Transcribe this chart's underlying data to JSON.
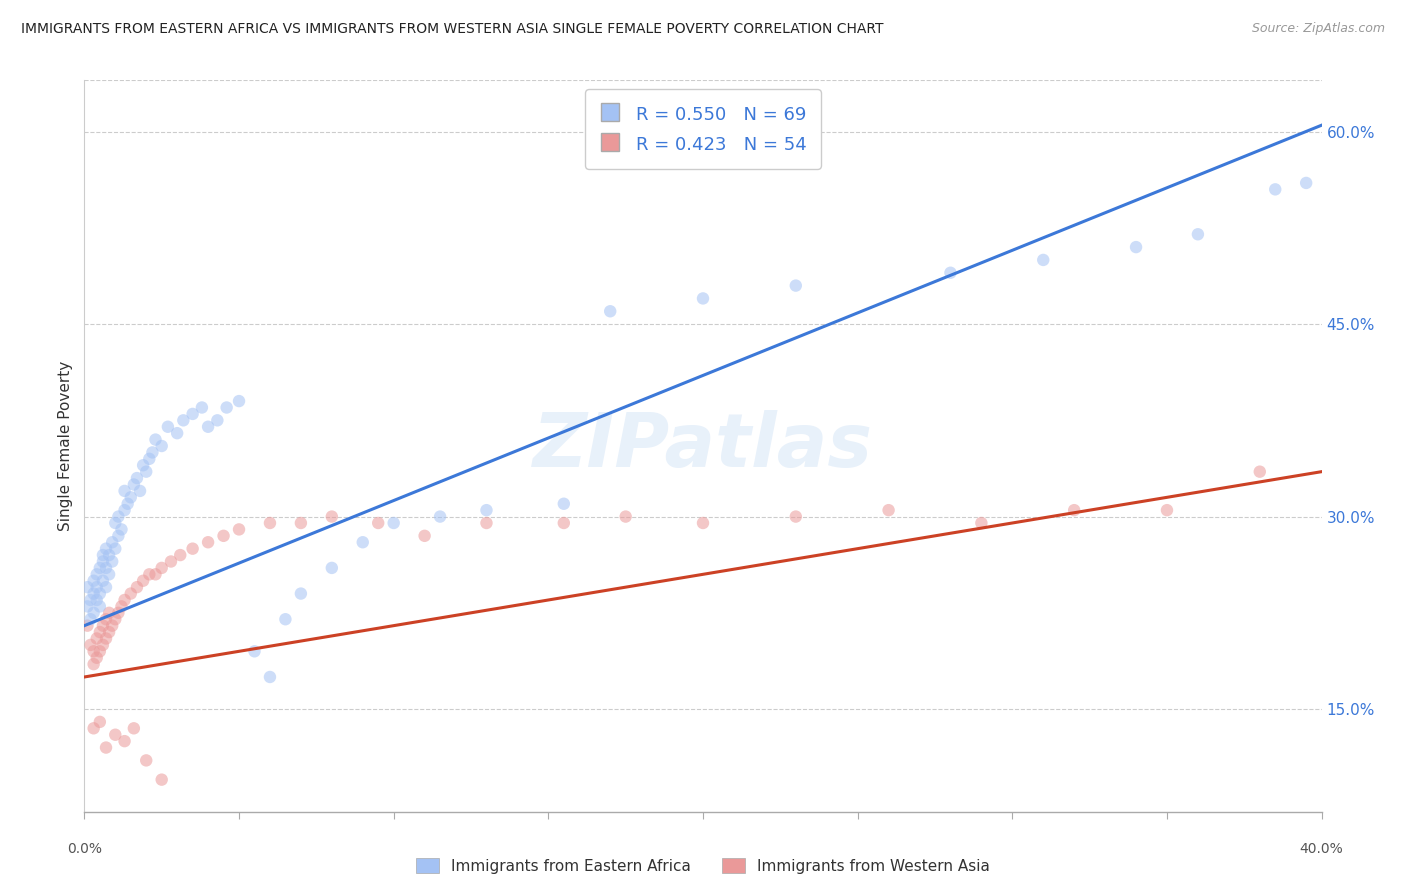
{
  "title": "IMMIGRANTS FROM EASTERN AFRICA VS IMMIGRANTS FROM WESTERN ASIA SINGLE FEMALE POVERTY CORRELATION CHART",
  "source": "Source: ZipAtlas.com",
  "ylabel": "Single Female Poverty",
  "right_yticks": [
    "15.0%",
    "30.0%",
    "45.0%",
    "60.0%"
  ],
  "right_ytick_vals": [
    0.15,
    0.3,
    0.45,
    0.6
  ],
  "xlim": [
    0.0,
    0.4
  ],
  "ylim": [
    0.07,
    0.64
  ],
  "legend1_R": "0.550",
  "legend1_N": "69",
  "legend2_R": "0.423",
  "legend2_N": "54",
  "blue_color": "#a4c2f4",
  "pink_color": "#ea9999",
  "line_blue": "#3c78d8",
  "line_pink": "#cc4125",
  "scatter_alpha": 0.55,
  "scatter_size": 80,
  "legend_label_1": "Immigrants from Eastern Africa",
  "legend_label_2": "Immigrants from Western Asia",
  "watermark": "ZIPatlas",
  "blue_line_x": [
    0.0,
    0.4
  ],
  "blue_line_y": [
    0.215,
    0.605
  ],
  "pink_line_x": [
    0.0,
    0.4
  ],
  "pink_line_y": [
    0.175,
    0.335
  ],
  "blue_scatter_x": [
    0.001,
    0.001,
    0.002,
    0.002,
    0.003,
    0.003,
    0.003,
    0.004,
    0.004,
    0.004,
    0.005,
    0.005,
    0.005,
    0.006,
    0.006,
    0.006,
    0.007,
    0.007,
    0.007,
    0.008,
    0.008,
    0.009,
    0.009,
    0.01,
    0.01,
    0.011,
    0.011,
    0.012,
    0.013,
    0.013,
    0.014,
    0.015,
    0.016,
    0.017,
    0.018,
    0.019,
    0.02,
    0.021,
    0.022,
    0.023,
    0.025,
    0.027,
    0.03,
    0.032,
    0.035,
    0.038,
    0.04,
    0.043,
    0.046,
    0.05,
    0.055,
    0.06,
    0.065,
    0.07,
    0.08,
    0.09,
    0.1,
    0.115,
    0.13,
    0.155,
    0.17,
    0.2,
    0.23,
    0.28,
    0.31,
    0.34,
    0.36,
    0.385,
    0.395
  ],
  "blue_scatter_y": [
    0.245,
    0.23,
    0.22,
    0.235,
    0.24,
    0.225,
    0.25,
    0.235,
    0.245,
    0.255,
    0.23,
    0.24,
    0.26,
    0.25,
    0.265,
    0.27,
    0.245,
    0.26,
    0.275,
    0.255,
    0.27,
    0.265,
    0.28,
    0.275,
    0.295,
    0.285,
    0.3,
    0.29,
    0.305,
    0.32,
    0.31,
    0.315,
    0.325,
    0.33,
    0.32,
    0.34,
    0.335,
    0.345,
    0.35,
    0.36,
    0.355,
    0.37,
    0.365,
    0.375,
    0.38,
    0.385,
    0.37,
    0.375,
    0.385,
    0.39,
    0.195,
    0.175,
    0.22,
    0.24,
    0.26,
    0.28,
    0.295,
    0.3,
    0.305,
    0.31,
    0.46,
    0.47,
    0.48,
    0.49,
    0.5,
    0.51,
    0.52,
    0.555,
    0.56
  ],
  "pink_scatter_x": [
    0.001,
    0.002,
    0.003,
    0.003,
    0.004,
    0.004,
    0.005,
    0.005,
    0.006,
    0.006,
    0.007,
    0.007,
    0.008,
    0.008,
    0.009,
    0.01,
    0.011,
    0.012,
    0.013,
    0.015,
    0.017,
    0.019,
    0.021,
    0.023,
    0.025,
    0.028,
    0.031,
    0.035,
    0.04,
    0.045,
    0.05,
    0.06,
    0.07,
    0.08,
    0.095,
    0.11,
    0.13,
    0.155,
    0.175,
    0.2,
    0.23,
    0.26,
    0.29,
    0.32,
    0.35,
    0.38,
    0.003,
    0.005,
    0.007,
    0.01,
    0.013,
    0.016,
    0.02,
    0.025
  ],
  "pink_scatter_y": [
    0.215,
    0.2,
    0.185,
    0.195,
    0.19,
    0.205,
    0.195,
    0.21,
    0.2,
    0.215,
    0.205,
    0.22,
    0.21,
    0.225,
    0.215,
    0.22,
    0.225,
    0.23,
    0.235,
    0.24,
    0.245,
    0.25,
    0.255,
    0.255,
    0.26,
    0.265,
    0.27,
    0.275,
    0.28,
    0.285,
    0.29,
    0.295,
    0.295,
    0.3,
    0.295,
    0.285,
    0.295,
    0.295,
    0.3,
    0.295,
    0.3,
    0.305,
    0.295,
    0.305,
    0.305,
    0.335,
    0.135,
    0.14,
    0.12,
    0.13,
    0.125,
    0.135,
    0.11,
    0.095
  ]
}
